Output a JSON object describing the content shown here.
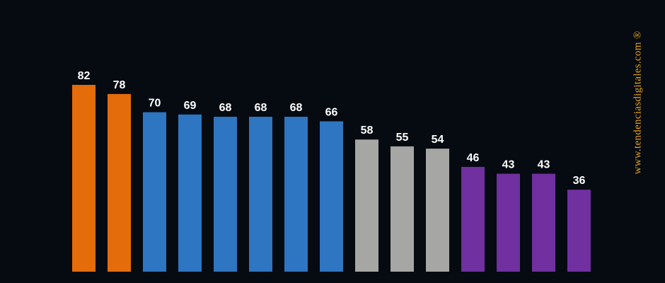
{
  "chart_data": {
    "type": "bar",
    "values": [
      82,
      78,
      70,
      69,
      68,
      68,
      68,
      66,
      58,
      55,
      54,
      46,
      43,
      43,
      36
    ],
    "labels": [
      "82",
      "78",
      "70",
      "69",
      "68",
      "68",
      "68",
      "66",
      "58",
      "55",
      "54",
      "46",
      "43",
      "43",
      "36"
    ],
    "bar_colors": [
      "#e46c0a",
      "#e46c0a",
      "#2e75c2",
      "#2e75c2",
      "#2e75c2",
      "#2e75c2",
      "#2e75c2",
      "#2e75c2",
      "#a6a6a4",
      "#a6a6a4",
      "#a6a6a4",
      "#7030a0",
      "#7030a0",
      "#7030a0",
      "#7030a0"
    ],
    "ylim": [
      0,
      100
    ],
    "grid": false,
    "legend": "none"
  },
  "watermark": {
    "text": "www.tendenciasdigitales.com ®",
    "color": "#e8a317"
  },
  "colors": {
    "background": "#060a11",
    "label": "#ffffff"
  }
}
